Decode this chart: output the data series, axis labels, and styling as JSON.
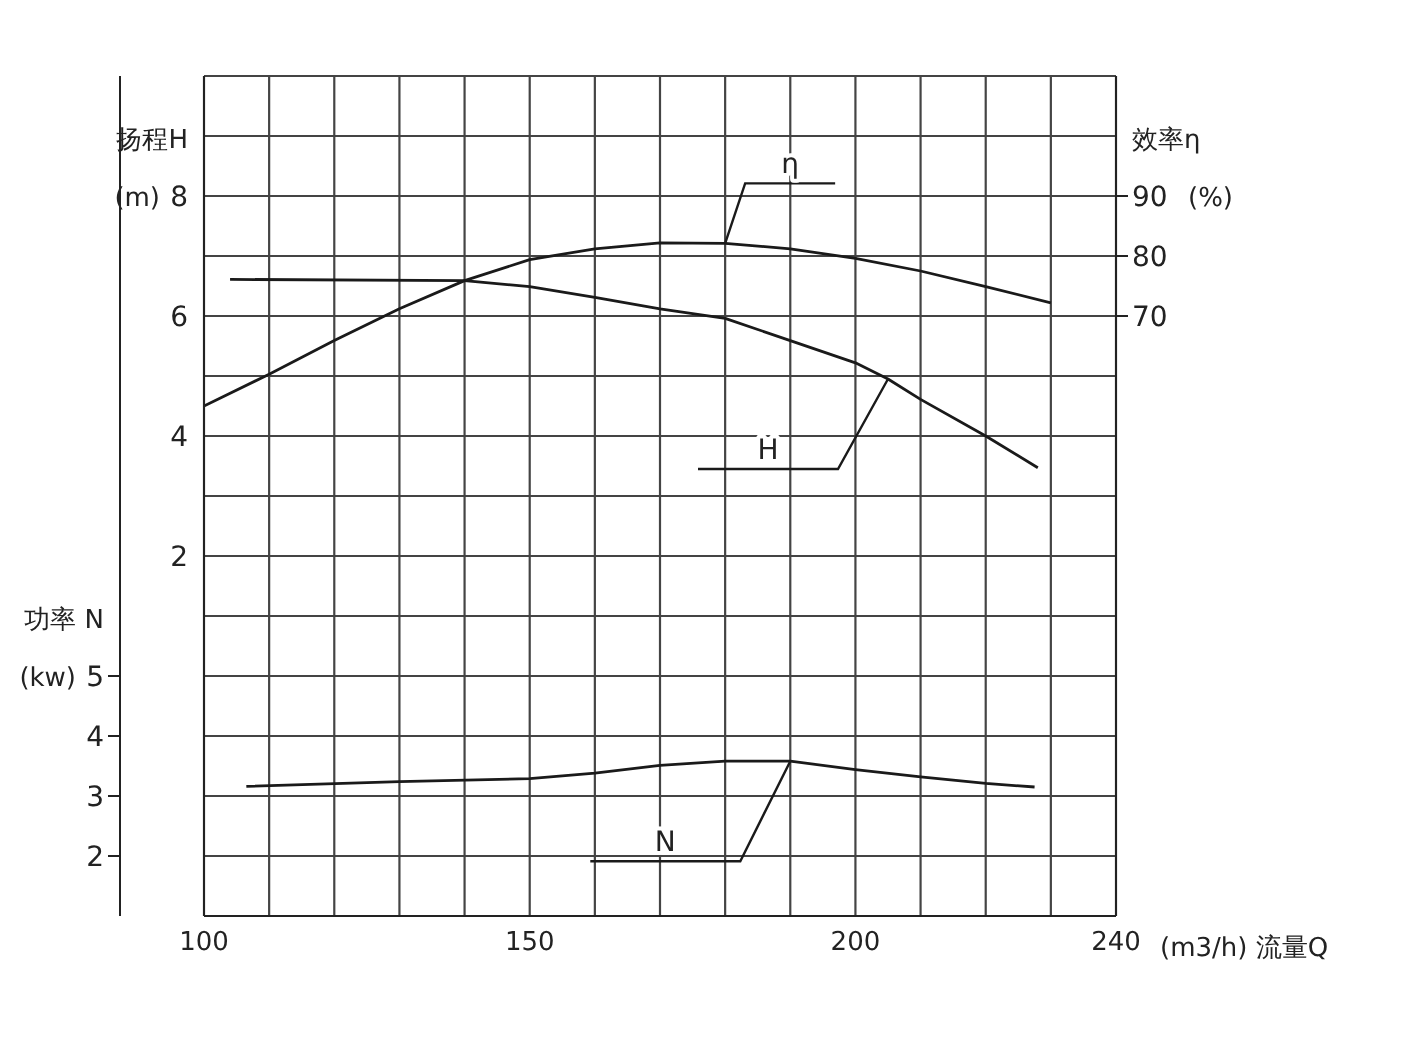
{
  "chart_data": {
    "type": "line",
    "xlabel": "(m3/h) 流量Q",
    "ylabel": "扬程H (m)",
    "y2label": "效率η (%)",
    "y3label": "功率 N (kw)",
    "xlim": [
      100,
      240
    ],
    "xticks": [
      100,
      {
        "value": 110,
        "label": null
      },
      {
        "value": 120,
        "label": null
      },
      {
        "value": 130,
        "label": null
      },
      {
        "value": 140,
        "label": null
      },
      150,
      {
        "value": 160,
        "label": null
      },
      {
        "value": 170,
        "label": null
      },
      {
        "value": 180,
        "label": null
      },
      {
        "value": 190,
        "label": null
      },
      200,
      {
        "value": 210,
        "label": null
      },
      {
        "value": 220,
        "label": null
      },
      {
        "value": 230,
        "label": null
      },
      240
    ],
    "ylim": [
      -4,
      10
    ],
    "yticks": [
      {
        "value": -4,
        "label": null
      },
      {
        "value": -3,
        "label": null
      },
      {
        "value": -2,
        "label": null
      },
      {
        "value": -1,
        "label": null
      },
      {
        "value": 0,
        "label": null
      },
      {
        "value": 1,
        "label": null
      },
      2,
      {
        "value": 3,
        "label": null
      },
      4,
      {
        "value": 5,
        "label": null
      },
      6,
      {
        "value": 7,
        "label": null
      },
      8,
      {
        "value": 9,
        "label": null
      },
      {
        "value": 10,
        "label": null
      }
    ],
    "y2lim": [
      -30,
      110
    ],
    "y2ticks": [
      70,
      80,
      90
    ],
    "y3lim": [
      1,
      15
    ],
    "y3ticks": [
      2,
      3,
      4,
      5
    ],
    "grid": true,
    "legend": false,
    "marker": "none",
    "line_style": "solid",
    "series": [
      {
        "name": "η",
        "color": "#1a1a1a",
        "axis": "y2",
        "x": [
          100,
          110,
          120,
          130,
          140,
          150,
          160,
          170,
          180,
          190,
          200,
          210,
          220,
          230
        ],
        "values": [
          55,
          60.3,
          65.9,
          71.2,
          75.9,
          79.4,
          81.2,
          82.2,
          82.1,
          81.2,
          79.6,
          77.5,
          74.9,
          72.2
        ]
      },
      {
        "name": "H",
        "color": "#1a1a1a",
        "x": [
          104,
          140,
          150,
          160,
          170,
          180,
          190,
          200,
          205,
          210,
          220,
          228
        ],
        "values": [
          6.61,
          6.59,
          6.49,
          6.31,
          6.12,
          5.96,
          5.59,
          5.22,
          4.95,
          4.61,
          4.0,
          3.47
        ]
      },
      {
        "name": "N",
        "color": "#1a1a1a",
        "axis": "y3",
        "x": [
          106.5,
          130,
          150,
          160,
          170,
          180,
          190,
          200,
          210,
          220,
          227.5
        ],
        "values": [
          3.16,
          3.24,
          3.29,
          3.38,
          3.51,
          3.58,
          3.58,
          3.44,
          3.32,
          3.21,
          3.15
        ]
      }
    ]
  }
}
